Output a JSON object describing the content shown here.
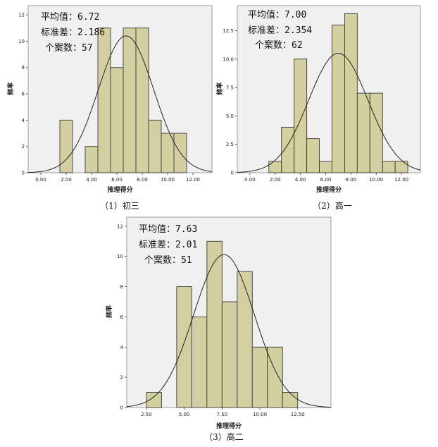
{
  "chart_data": [
    {
      "type": "bar",
      "caption": "（1）初三",
      "xlabel": "推理得分",
      "ylabel": "频率",
      "stats": [
        "平均值：6.72",
        "标准差：2.186",
        "个案数：57"
      ],
      "mean": 6.72,
      "sd": 2.186,
      "n": 57,
      "xlim": [
        -1,
        13.5
      ],
      "ylim": [
        0,
        12.7
      ],
      "xticks": [
        0,
        2,
        4,
        6,
        8,
        10,
        12
      ],
      "xtick_labels": [
        "0.00",
        "2.00",
        "4.00",
        "6.00",
        "8.00",
        "10.00",
        "12.00"
      ],
      "yticks": [
        0,
        2,
        4,
        6,
        8,
        10,
        12
      ],
      "ytick_labels": [
        "0",
        "2",
        "4",
        "6",
        "8",
        "10",
        "12"
      ],
      "bin_width": 1,
      "bins": [
        {
          "x0": 1.5,
          "x1": 2.5,
          "count": 4
        },
        {
          "x0": 3.5,
          "x1": 4.5,
          "count": 2
        },
        {
          "x0": 4.5,
          "x1": 5.5,
          "count": 11
        },
        {
          "x0": 5.5,
          "x1": 6.5,
          "count": 8
        },
        {
          "x0": 6.5,
          "x1": 7.5,
          "count": 11
        },
        {
          "x0": 7.5,
          "x1": 8.5,
          "count": 11
        },
        {
          "x0": 8.5,
          "x1": 9.5,
          "count": 4
        },
        {
          "x0": 9.5,
          "x1": 10.5,
          "count": 3
        },
        {
          "x0": 10.5,
          "x1": 11.5,
          "count": 3
        }
      ],
      "colors": {
        "bar": "#d4cfa0",
        "panel": "#f0f0f0",
        "edge": "#3a3a3a",
        "curve": "#222222"
      }
    },
    {
      "type": "bar",
      "caption": "（2）高一",
      "xlabel": "推理得分",
      "ylabel": "频率",
      "stats": [
        "平均值：7.00",
        "标准差：2.354",
        "个案数：62"
      ],
      "mean": 7.0,
      "sd": 2.354,
      "n": 62,
      "xlim": [
        -1,
        13.5
      ],
      "ylim": [
        0,
        14.7
      ],
      "xticks": [
        0,
        2,
        4,
        6,
        8,
        10,
        12
      ],
      "xtick_labels": [
        "0.00",
        "2.00",
        "4.00",
        "6.00",
        "8.00",
        "10.00",
        "12.00"
      ],
      "yticks": [
        0,
        2.5,
        5,
        7.5,
        10,
        12.5
      ],
      "ytick_labels": [
        "0",
        "2.5",
        "5.0",
        "7.5",
        "10.0",
        "12.5"
      ],
      "bin_width": 1,
      "bins": [
        {
          "x0": 1.5,
          "x1": 2.5,
          "count": 1
        },
        {
          "x0": 2.5,
          "x1": 3.5,
          "count": 4
        },
        {
          "x0": 3.5,
          "x1": 4.5,
          "count": 10
        },
        {
          "x0": 4.5,
          "x1": 5.5,
          "count": 3
        },
        {
          "x0": 5.5,
          "x1": 6.5,
          "count": 1
        },
        {
          "x0": 6.5,
          "x1": 7.5,
          "count": 13
        },
        {
          "x0": 7.5,
          "x1": 8.5,
          "count": 14
        },
        {
          "x0": 8.5,
          "x1": 9.5,
          "count": 7
        },
        {
          "x0": 9.5,
          "x1": 10.5,
          "count": 7
        },
        {
          "x0": 10.5,
          "x1": 11.5,
          "count": 1
        },
        {
          "x0": 11.5,
          "x1": 12.5,
          "count": 1
        }
      ],
      "colors": {
        "bar": "#d4cfa0",
        "panel": "#f0f0f0",
        "edge": "#3a3a3a",
        "curve": "#222222"
      }
    },
    {
      "type": "bar",
      "caption": "（3）高二",
      "xlabel": "推理得分",
      "ylabel": "频率",
      "stats": [
        "平均值：7.63",
        "标准差：2.01",
        "个案数：51"
      ],
      "mean": 7.63,
      "sd": 2.01,
      "n": 51,
      "xlim": [
        1.2,
        14.7
      ],
      "ylim": [
        0,
        12.6
      ],
      "xticks": [
        2.5,
        5,
        7.5,
        10,
        12.5
      ],
      "xtick_labels": [
        "2.50",
        "5.00",
        "7.50",
        "10.00",
        "12.50"
      ],
      "yticks": [
        0,
        2,
        4,
        6,
        8,
        10,
        12
      ],
      "ytick_labels": [
        "0",
        "2",
        "4",
        "6",
        "8",
        "10",
        "12"
      ],
      "bin_width": 1,
      "bins": [
        {
          "x0": 2.5,
          "x1": 3.5,
          "count": 1
        },
        {
          "x0": 4.5,
          "x1": 5.5,
          "count": 8
        },
        {
          "x0": 5.5,
          "x1": 6.5,
          "count": 6
        },
        {
          "x0": 6.5,
          "x1": 7.5,
          "count": 11
        },
        {
          "x0": 7.5,
          "x1": 8.5,
          "count": 7
        },
        {
          "x0": 8.5,
          "x1": 9.5,
          "count": 9
        },
        {
          "x0": 9.5,
          "x1": 10.5,
          "count": 4
        },
        {
          "x0": 10.5,
          "x1": 11.5,
          "count": 4
        },
        {
          "x0": 11.5,
          "x1": 12.5,
          "count": 1
        }
      ],
      "colors": {
        "bar": "#d4cfa0",
        "panel": "#f0f0f0",
        "edge": "#3a3a3a",
        "curve": "#222222"
      }
    }
  ]
}
